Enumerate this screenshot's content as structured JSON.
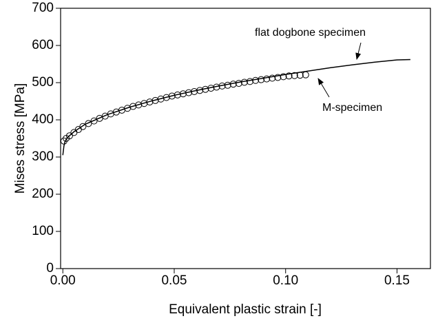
{
  "chart_data": {
    "type": "line",
    "x_label": "Equivalent plastic strain [-]",
    "y_label": "Mises stress [MPa]",
    "xlim": [
      -0.001,
      0.165
    ],
    "ylim": [
      0,
      700
    ],
    "xticks": [
      {
        "value": 0,
        "label": "0.00"
      },
      {
        "value": 0.05,
        "label": "0.05"
      },
      {
        "value": 0.1,
        "label": "0.10"
      },
      {
        "value": 0.15,
        "label": "0.15"
      }
    ],
    "yticks": [
      0,
      100,
      200,
      300,
      400,
      500,
      600,
      700
    ],
    "annotations": [
      "flat dogbone specimen",
      "M-specimen"
    ],
    "series": [
      {
        "name": "flat dogbone specimen",
        "color": "#000000",
        "marker": "none",
        "x": [
          0,
          0.0005,
          0.001,
          0.002,
          0.005,
          0.01,
          0.02,
          0.03,
          0.04,
          0.05,
          0.06,
          0.07,
          0.08,
          0.09,
          0.1,
          0.11,
          0.12,
          0.13,
          0.14,
          0.15,
          0.156
        ],
        "values": [
          305,
          330,
          342,
          352,
          368,
          388,
          414,
          434,
          451,
          466,
          479,
          491,
          502,
          512,
          522,
          531,
          540,
          548,
          555,
          561,
          562
        ]
      },
      {
        "name": "M-specimen",
        "color": "#000000",
        "marker": "circle",
        "x": [
          0.0005,
          0.0015,
          0.003,
          0.005,
          0.007,
          0.009,
          0.0115,
          0.014,
          0.0165,
          0.019,
          0.0215,
          0.024,
          0.0265,
          0.029,
          0.0315,
          0.034,
          0.0365,
          0.039,
          0.0415,
          0.044,
          0.0465,
          0.049,
          0.0515,
          0.054,
          0.0565,
          0.059,
          0.0615,
          0.064,
          0.0665,
          0.069,
          0.0715,
          0.074,
          0.0765,
          0.079,
          0.0815,
          0.084,
          0.0865,
          0.089,
          0.0915,
          0.094,
          0.0965,
          0.099,
          0.1015,
          0.104,
          0.1065,
          0.109
        ],
        "values": [
          343,
          350,
          357,
          366,
          374,
          382,
          390,
          397,
          404,
          410,
          416,
          421,
          426,
          431,
          436,
          440,
          444,
          448,
          452,
          456,
          460,
          464,
          467,
          470,
          473,
          476,
          479,
          482,
          485,
          488,
          491,
          493,
          496,
          498,
          501,
          503,
          506,
          508,
          510,
          512,
          514,
          516,
          518,
          519,
          520,
          521
        ]
      }
    ]
  }
}
